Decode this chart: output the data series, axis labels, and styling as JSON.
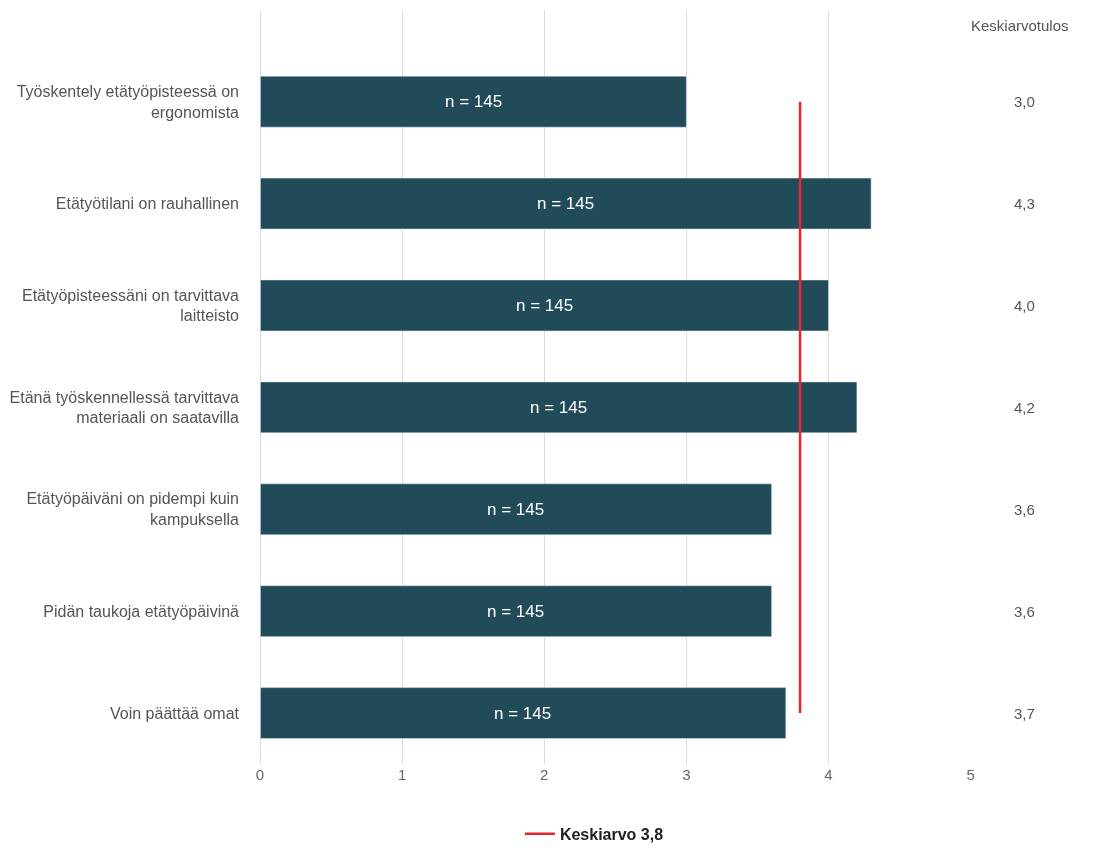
{
  "chart_data": {
    "type": "bar",
    "orientation": "horizontal",
    "categories": [
      "Työskentely etätyöpisteessä on ergonomista",
      "Etätyötilani on rauhallinen",
      "Etätyöpisteessäni on tarvittava laitteisto",
      "Etänä työskennellessä tarvittava materiaali on saatavilla",
      "Etätyöpäiväni on pidempi kuin kampuksella",
      "Pidän taukoja etätyöpäivinä",
      "Voin päättää omat"
    ],
    "values": [
      3.0,
      4.3,
      4.0,
      4.2,
      3.6,
      3.6,
      3.7
    ],
    "value_labels": [
      "3,0",
      "4,3",
      "4,0",
      "4,2",
      "3,6",
      "3,6",
      "3,7"
    ],
    "color": "#224b5a",
    "xlim": [
      0,
      5
    ],
    "xticks": [
      0,
      1,
      2,
      3,
      4,
      5
    ],
    "grid": "x",
    "ref_lines": [
      {
        "axis": "x",
        "value": 3.8,
        "label": "Keskiarvo 3,8",
        "color": "#e8262b"
      }
    ],
    "annotations": [
      "Keskiarvotulos",
      "n = 145",
      "n = 145",
      "n = 145",
      "n = 145",
      "n = 145",
      "n = 145",
      "n = 145"
    ],
    "legend": "bottom"
  }
}
